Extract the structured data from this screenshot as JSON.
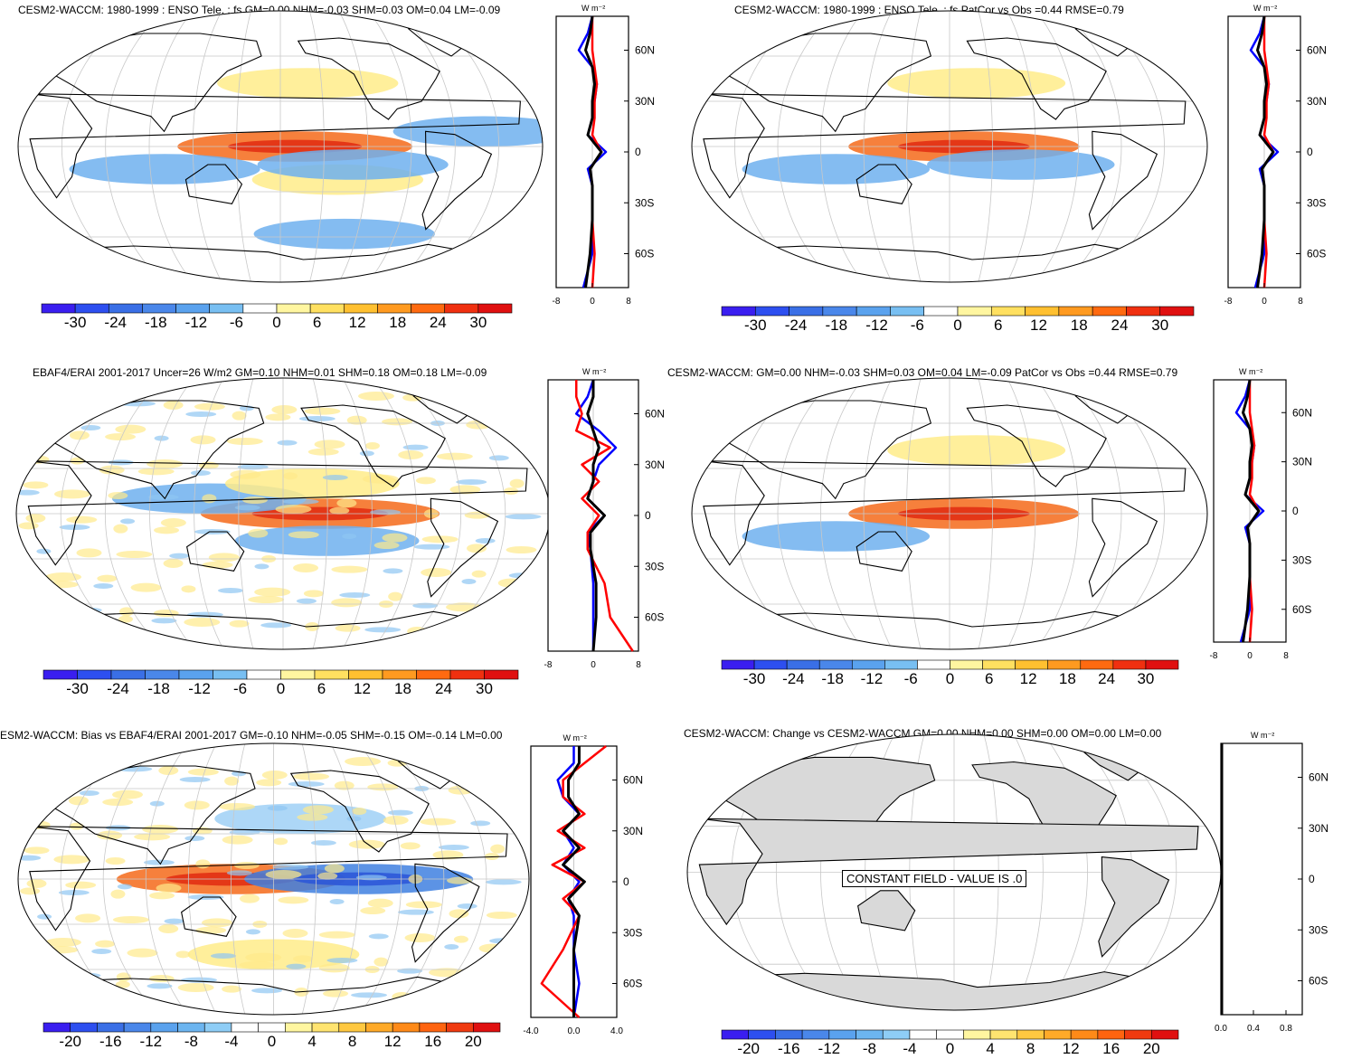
{
  "figure": {
    "units_label": "W m⁻²",
    "lat_labels": [
      "60N",
      "30N",
      "0",
      "30S",
      "60S"
    ],
    "colors": {
      "ocean_white": "#ffffff",
      "grid": "#c8c8c8",
      "land_gray": "#d9d9d9",
      "obs_line": "#ff0000",
      "model_line": "#0000ff",
      "diff_line": "#000000"
    },
    "palette_12": [
      "#3a1ef0",
      "#2d4ff0",
      "#3a6fe6",
      "#4a87ea",
      "#5aa2ee",
      "#78bff2",
      "#ffffff",
      "#fff6a0",
      "#ffe060",
      "#ffc030",
      "#ff9a20",
      "#ff6a10",
      "#f03010",
      "#e01010"
    ],
    "palette_10": [
      "#3a1ef0",
      "#2d4ff0",
      "#3a6fe6",
      "#4a87ea",
      "#5aa2ee",
      "#6cb5f0",
      "#8ecdf6",
      "#ffffff",
      "#ffffff",
      "#fff6a0",
      "#ffe470",
      "#ffc840",
      "#ffaa28",
      "#ff8a18",
      "#ff6410",
      "#f03a10",
      "#e01010"
    ]
  },
  "panels": [
    {
      "id": "p1",
      "title": "CESM2-WACCM: 1980-1999 : ENSO Tele. : fs GM=0.00 NHM=-0.03 SHM=0.03 OM=0.04 LM=-0.09",
      "colorbar_ticks": [
        "-30",
        "-24",
        "-18",
        "-12",
        "-6",
        "0",
        "6",
        "12",
        "18",
        "24",
        "30"
      ],
      "zonal_ticks": [
        "-8",
        "0",
        "8"
      ]
    },
    {
      "id": "p2",
      "title": "CESM2-WACCM: 1980-1999 : ENSO Tele. : fs PatCor vs Obs =0.44 RMSE=0.79",
      "colorbar_ticks": [
        "-30",
        "-24",
        "-18",
        "-12",
        "-6",
        "0",
        "6",
        "12",
        "18",
        "24",
        "30"
      ],
      "zonal_ticks": [
        "-8",
        "0",
        "8"
      ]
    },
    {
      "id": "p3",
      "title": "EBAF4/ERAI 2001-2017 Uncer=26 W/m2 GM=0.10 NHM=0.01 SHM=0.18 OM=0.18 LM=-0.09",
      "colorbar_ticks": [
        "-30",
        "-24",
        "-18",
        "-12",
        "-6",
        "0",
        "6",
        "12",
        "18",
        "24",
        "30"
      ],
      "zonal_ticks": [
        "-8",
        "0",
        "8"
      ]
    },
    {
      "id": "p4",
      "title": "CESM2-WACCM: GM=0.00 NHM=-0.03 SHM=0.03 OM=0.04 LM=-0.09 PatCor vs Obs =0.44 RMSE=0.79",
      "colorbar_ticks": [
        "-30",
        "-24",
        "-18",
        "-12",
        "-6",
        "0",
        "6",
        "12",
        "18",
        "24",
        "30"
      ],
      "zonal_ticks": [
        "-8",
        "0",
        "8"
      ]
    },
    {
      "id": "p5",
      "title": "ESM2-WACCM: Bias vs EBAF4/ERAI 2001-2017 GM=-0.10 NHM=-0.05 SHM=-0.15 OM=-0.14 LM=0.00",
      "colorbar_ticks": [
        "-20",
        "-16",
        "-12",
        "-8",
        "-4",
        "0",
        "4",
        "8",
        "12",
        "16",
        "20"
      ],
      "zonal_ticks": [
        "-4.0",
        "0.0",
        "4.0"
      ]
    },
    {
      "id": "p6",
      "title": "CESM2-WACCM: Change vs CESM2-WACCM GM=0.00 NHM=0.00 SHM=0.00 OM=0.00 LM=0.00",
      "colorbar_ticks": [
        "-20",
        "-16",
        "-12",
        "-8",
        "-4",
        "0",
        "4",
        "8",
        "12",
        "16",
        "20"
      ],
      "zonal_ticks": [
        "0.0",
        "0.4",
        "0.8"
      ],
      "annotation": "CONSTANT FIELD - VALUE IS .0"
    }
  ],
  "chart_data": [
    {
      "type": "heatmap",
      "panel": "p1",
      "title": "CESM2-WACCM: 1980-1999 : ENSO Tele. : fs GM=0.00 NHM=-0.03 SHM=0.03 OM=0.04 LM=-0.09",
      "projection": "Robinson",
      "units": "W m-2",
      "colorbar_range": [
        -30,
        30
      ],
      "features": [
        {
          "region": "equatorial central Pacific",
          "lat": 0,
          "lon": 190,
          "value": 24
        },
        {
          "region": "North Pacific",
          "lat": 42,
          "lon": 200,
          "value": 10
        },
        {
          "region": "subtropical South Pacific",
          "lat": -22,
          "lon": 220,
          "value": 8
        },
        {
          "region": "Maritime Continent / Indian Ocean",
          "lat": -15,
          "lon": 100,
          "value": -12
        },
        {
          "region": "tropical Atlantic",
          "lat": 10,
          "lon": 320,
          "value": -10
        },
        {
          "region": "southern subtropical Pacific band",
          "lat": -12,
          "lon": 230,
          "value": -12
        },
        {
          "region": "Southern Ocean",
          "lat": -58,
          "lon": 230,
          "value": -10
        }
      ],
      "zonal_mean": {
        "xlim": [
          -8,
          8
        ],
        "series": [
          {
            "name": "model",
            "lat": [
              -80,
              -60,
              -40,
              -20,
              -10,
              0,
              10,
              20,
              30,
              40,
              50,
              60,
              70,
              80
            ],
            "values": [
              -2,
              0,
              0,
              0,
              -1,
              3,
              -1,
              0,
              0.5,
              1,
              0,
              -3,
              -1,
              0
            ]
          },
          {
            "name": "obs",
            "lat": [
              -80,
              -60,
              -40,
              -20,
              -10,
              0,
              10,
              20,
              30,
              40,
              50,
              60,
              70,
              80
            ],
            "values": [
              0,
              0.5,
              0,
              0,
              -0.5,
              2,
              0,
              0.5,
              0.5,
              1,
              0.5,
              0,
              0,
              0
            ]
          },
          {
            "name": "difference",
            "lat": [
              -80,
              -60,
              -40,
              -20,
              -10,
              0,
              10,
              20,
              30,
              40,
              50,
              60,
              70,
              80
            ],
            "values": [
              -1.5,
              -0.5,
              0,
              0,
              -0.5,
              2,
              -1,
              0,
              0,
              0.5,
              0,
              -1.5,
              -0.5,
              0
            ]
          }
        ]
      }
    },
    {
      "type": "heatmap",
      "panel": "p2",
      "title": "CESM2-WACCM: 1980-1999 : ENSO Tele. : fs PatCor vs Obs =0.44 RMSE=0.79",
      "projection": "Robinson",
      "units": "W m-2",
      "colorbar_range": [
        -30,
        30
      ],
      "features": [
        {
          "region": "equatorial central Pacific",
          "lat": 0,
          "lon": 190,
          "value": 24
        },
        {
          "region": "North Pacific",
          "lat": 42,
          "lon": 200,
          "value": 10
        },
        {
          "region": "Maritime Continent / Indian Ocean",
          "lat": -15,
          "lon": 100,
          "value": -12
        },
        {
          "region": "southern subtropical Pacific band",
          "lat": -12,
          "lon": 230,
          "value": -12
        }
      ],
      "zonal_mean": {
        "xlim": [
          -8,
          8
        ],
        "series": [
          {
            "name": "model",
            "lat": [
              -80,
              -60,
              -40,
              -20,
              -10,
              0,
              10,
              20,
              30,
              40,
              50,
              60,
              70,
              80
            ],
            "values": [
              -2,
              0,
              0,
              0,
              -1,
              3,
              -1,
              0,
              0.5,
              1,
              0,
              -3,
              -1,
              0
            ]
          },
          {
            "name": "obs",
            "lat": [
              -80,
              -60,
              -40,
              -20,
              -10,
              0,
              10,
              20,
              30,
              40,
              50,
              60,
              70,
              80
            ],
            "values": [
              0,
              0.5,
              0,
              0,
              -0.5,
              2,
              0,
              0.5,
              0.5,
              1,
              0.5,
              0,
              0,
              0
            ]
          },
          {
            "name": "difference",
            "lat": [
              -80,
              -60,
              -40,
              -20,
              -10,
              0,
              10,
              20,
              30,
              40,
              50,
              60,
              70,
              80
            ],
            "values": [
              -1.5,
              -0.5,
              0,
              0,
              -0.5,
              2,
              -1,
              0,
              0,
              0.5,
              0,
              -1.5,
              -0.5,
              0
            ]
          }
        ]
      }
    },
    {
      "type": "heatmap",
      "panel": "p3",
      "title": "EBAF4/ERAI 2001-2017 Uncer=26 W/m2 GM=0.10 NHM=0.01 SHM=0.18 OM=0.18 LM=-0.09",
      "projection": "Robinson",
      "units": "W m-2",
      "colorbar_range": [
        -30,
        30
      ],
      "features": [
        {
          "region": "equatorial central/east Pacific",
          "lat": 0,
          "lon": 205,
          "value": 26
        },
        {
          "region": "West Pacific warm pool",
          "lat": 10,
          "lon": 130,
          "value": -12
        },
        {
          "region": "subtropical North Pacific",
          "lat": 20,
          "lon": 200,
          "value": 8
        },
        {
          "region": "South Pacific",
          "lat": -18,
          "lon": 210,
          "value": -10
        }
      ],
      "zonal_mean": {
        "xlim": [
          -8,
          8
        ],
        "series": [
          {
            "name": "model",
            "lat": [
              -80,
              -60,
              -40,
              -20,
              -10,
              0,
              10,
              20,
              30,
              40,
              50,
              60,
              70,
              80
            ],
            "values": [
              0,
              0,
              0,
              -0.5,
              -1,
              2,
              -1,
              0,
              1,
              4,
              1,
              -3,
              -1,
              0
            ]
          },
          {
            "name": "obs",
            "lat": [
              -80,
              -60,
              -40,
              -20,
              -10,
              0,
              10,
              20,
              30,
              40,
              50,
              60,
              70,
              80
            ],
            "values": [
              7,
              3,
              2,
              -1,
              -1,
              1,
              -2,
              1,
              -2,
              3,
              -3,
              -2,
              -3,
              -3
            ]
          },
          {
            "name": "difference",
            "lat": [
              -80,
              -60,
              -40,
              -20,
              -10,
              0,
              10,
              20,
              30,
              40,
              50,
              60,
              70,
              80
            ],
            "values": [
              0,
              0.5,
              0.5,
              -0.5,
              -0.5,
              2,
              -1,
              0,
              0,
              1,
              0,
              -1,
              0,
              0
            ]
          }
        ]
      }
    },
    {
      "type": "heatmap",
      "panel": "p4",
      "title": "CESM2-WACCM: GM=0.00 NHM=-0.03 SHM=0.03 OM=0.04 LM=-0.09 PatCor vs Obs =0.44 RMSE=0.79",
      "projection": "Robinson",
      "units": "W m-2",
      "colorbar_range": [
        -30,
        30
      ],
      "features": [
        {
          "region": "equatorial central Pacific",
          "lat": 0,
          "lon": 190,
          "value": 24
        },
        {
          "region": "North Pacific",
          "lat": 42,
          "lon": 200,
          "value": 10
        },
        {
          "region": "Maritime Continent / Indian Ocean",
          "lat": -15,
          "lon": 100,
          "value": -12
        }
      ],
      "zonal_mean": {
        "xlim": [
          -8,
          8
        ],
        "series": [
          {
            "name": "model",
            "lat": [
              -80,
              -60,
              -40,
              -20,
              -10,
              0,
              10,
              20,
              30,
              40,
              50,
              60,
              70,
              80
            ],
            "values": [
              -2,
              0,
              0,
              0,
              -1,
              3,
              -1,
              0,
              0.5,
              1,
              0,
              -3,
              -1,
              0
            ]
          },
          {
            "name": "obs",
            "lat": [
              -80,
              -60,
              -40,
              -20,
              -10,
              0,
              10,
              20,
              30,
              40,
              50,
              60,
              70,
              80
            ],
            "values": [
              0,
              0.5,
              0,
              0,
              -0.5,
              2,
              0,
              0.5,
              0.5,
              1,
              0.5,
              0,
              0,
              0
            ]
          },
          {
            "name": "difference",
            "lat": [
              -80,
              -60,
              -40,
              -20,
              -10,
              0,
              10,
              20,
              30,
              40,
              50,
              60,
              70,
              80
            ],
            "values": [
              -1.5,
              -0.5,
              0,
              0,
              -0.5,
              2,
              -1,
              0,
              0,
              0.5,
              0,
              -1.5,
              -0.5,
              0
            ]
          }
        ]
      }
    },
    {
      "type": "heatmap",
      "panel": "p5",
      "title": "ESM2-WACCM: Bias vs EBAF4/ERAI 2001-2017 GM=-0.10 NHM=-0.05 SHM=-0.15 OM=-0.14 LM=0.00",
      "projection": "Robinson",
      "units": "W m-2",
      "colorbar_range": [
        -20,
        20
      ],
      "features": [
        {
          "region": "equatorial West Pacific",
          "lat": 0,
          "lon": 150,
          "value": 18
        },
        {
          "region": "equatorial East Pacific",
          "lat": 0,
          "lon": 240,
          "value": -14
        },
        {
          "region": "North Pacific",
          "lat": 40,
          "lon": 200,
          "value": -6
        },
        {
          "region": "Southern Ocean",
          "lat": -50,
          "lon": 180,
          "value": 6
        }
      ],
      "zonal_mean": {
        "xlim": [
          -4,
          4
        ],
        "series": [
          {
            "name": "model",
            "lat": [
              -80,
              -60,
              -40,
              -20,
              -10,
              0,
              10,
              20,
              30,
              40,
              50,
              60,
              70,
              80
            ],
            "values": [
              0,
              0.5,
              0,
              0,
              -0.5,
              0.5,
              -1,
              0,
              -1,
              0.5,
              -1,
              -1.5,
              0,
              0
            ]
          },
          {
            "name": "obs",
            "lat": [
              -80,
              -60,
              -40,
              -20,
              -10,
              0,
              10,
              20,
              30,
              40,
              50,
              60,
              70,
              80
            ],
            "values": [
              0.5,
              -3,
              -1,
              0.5,
              -1,
              1,
              -2,
              1,
              -1.5,
              1,
              -1,
              -1,
              1,
              3
            ]
          },
          {
            "name": "difference",
            "lat": [
              -80,
              -60,
              -40,
              -20,
              -10,
              0,
              10,
              20,
              30,
              40,
              50,
              60,
              70,
              80
            ],
            "values": [
              0,
              0,
              0,
              0.5,
              -0.5,
              1,
              -1,
              0.5,
              -1,
              0.5,
              -0.5,
              -0.5,
              0.5,
              0.5
            ]
          }
        ]
      }
    },
    {
      "type": "heatmap",
      "panel": "p6",
      "title": "CESM2-WACCM: Change vs CESM2-WACCM GM=0.00 NHM=0.00 SHM=0.00 OM=0.00 LM=0.00",
      "projection": "Robinson",
      "units": "W m-2",
      "colorbar_range": [
        -20,
        20
      ],
      "annotations": [
        "CONSTANT FIELD - VALUE IS .0"
      ],
      "zonal_mean": {
        "xlim": [
          0,
          1
        ],
        "series": [
          {
            "name": "difference",
            "lat": [
              -80,
              80
            ],
            "values": [
              0,
              0
            ]
          }
        ]
      }
    }
  ]
}
